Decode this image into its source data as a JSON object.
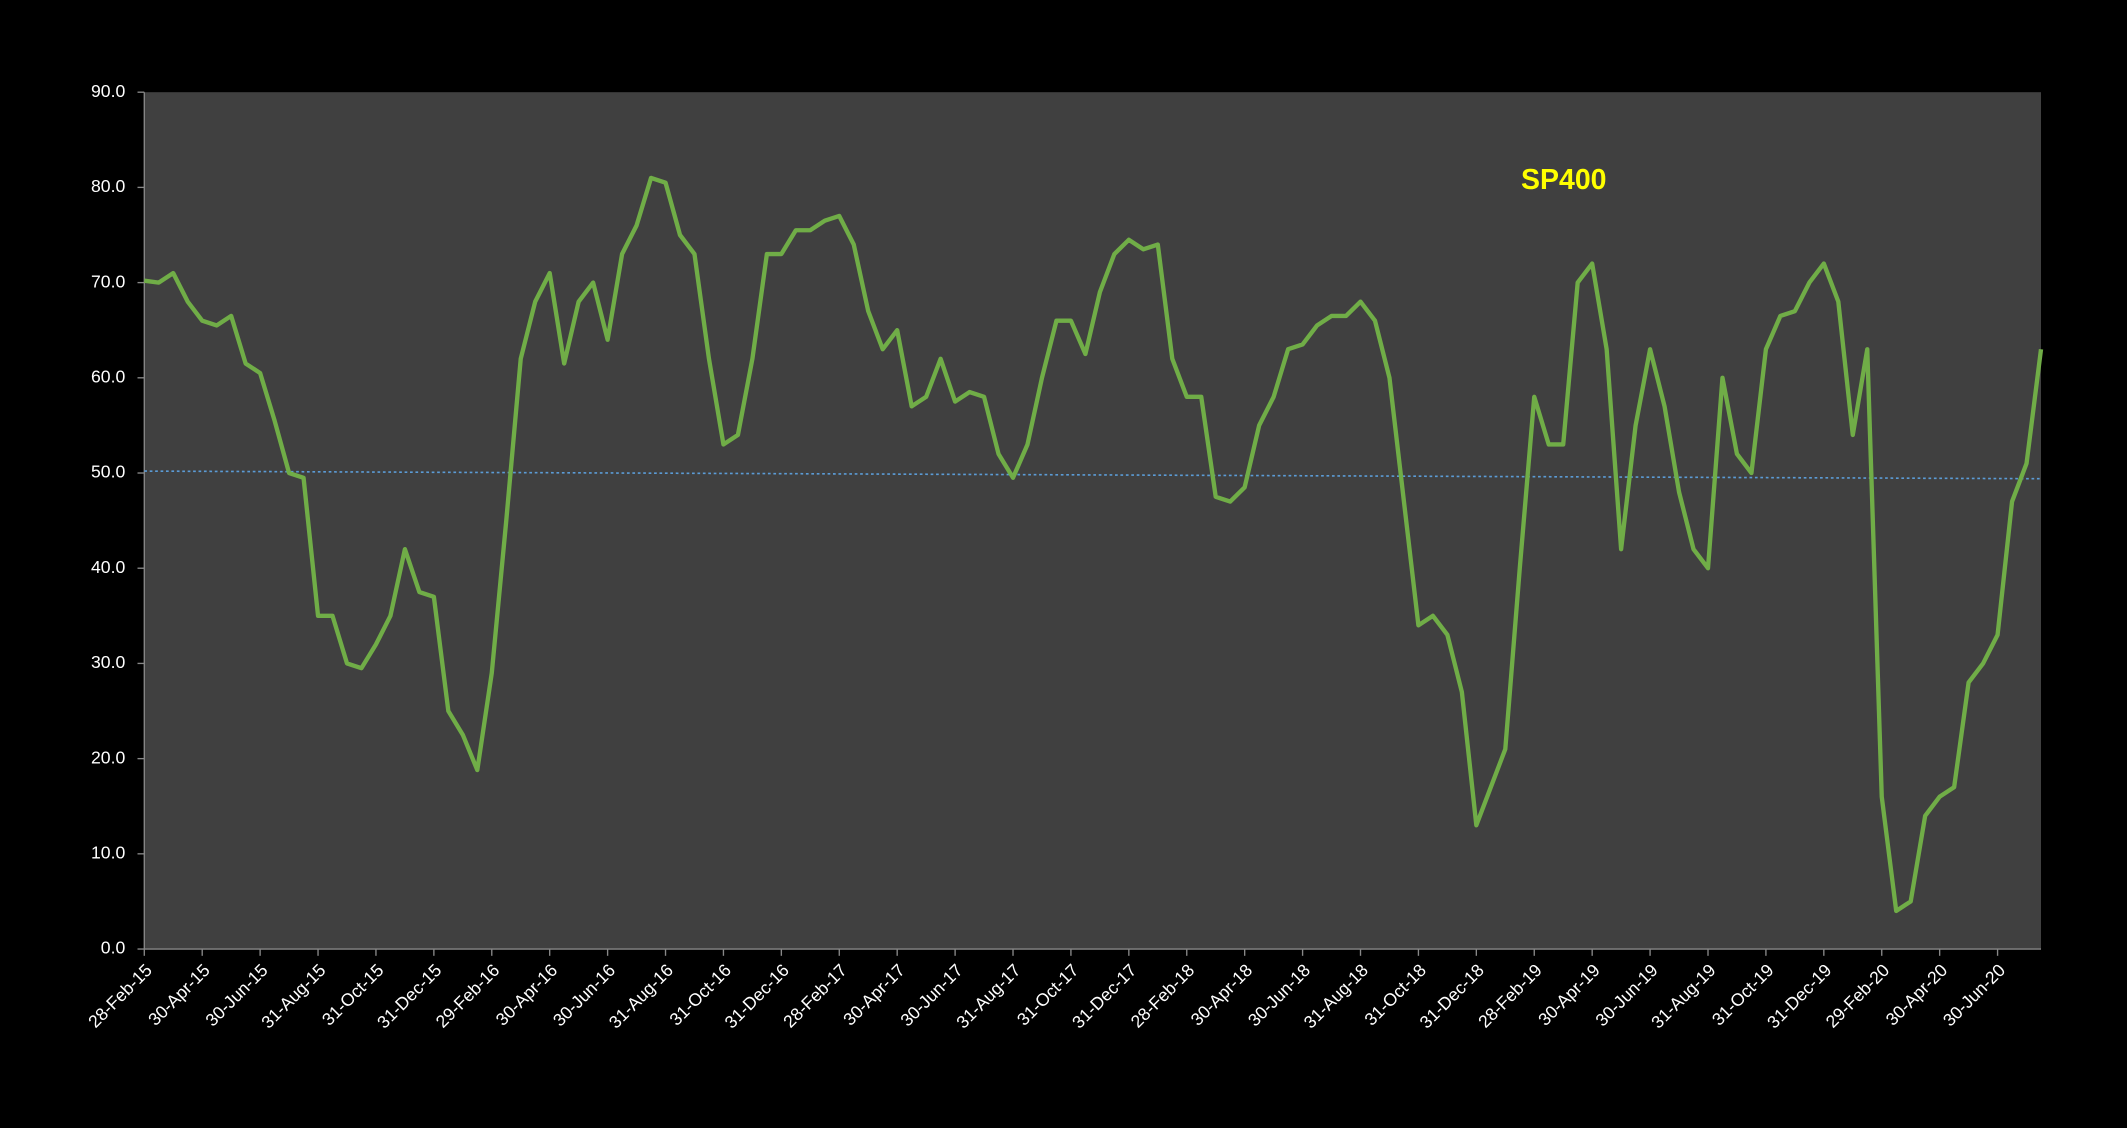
{
  "chart_data": {
    "type": "line",
    "title": "SP400",
    "title_color": "#ffff00",
    "categories": [
      "28-Feb-15",
      null,
      null,
      null,
      "30-Apr-15",
      null,
      null,
      null,
      "30-Jun-15",
      null,
      null,
      null,
      "31-Aug-15",
      null,
      null,
      null,
      "31-Oct-15",
      null,
      null,
      null,
      "31-Dec-15",
      null,
      null,
      null,
      "29-Feb-16",
      null,
      null,
      null,
      "30-Apr-16",
      null,
      null,
      null,
      "30-Jun-16",
      null,
      null,
      null,
      "31-Aug-16",
      null,
      null,
      null,
      "31-Oct-16",
      null,
      null,
      null,
      "31-Dec-16",
      null,
      null,
      null,
      "28-Feb-17",
      null,
      null,
      null,
      "30-Apr-17",
      null,
      null,
      null,
      "30-Jun-17",
      null,
      null,
      null,
      "31-Aug-17",
      null,
      null,
      null,
      "31-Oct-17",
      null,
      null,
      null,
      "31-Dec-17",
      null,
      null,
      null,
      "28-Feb-18",
      null,
      null,
      null,
      "30-Apr-18",
      null,
      null,
      null,
      "30-Jun-18",
      null,
      null,
      null,
      "31-Aug-18",
      null,
      null,
      null,
      "31-Oct-18",
      null,
      null,
      null,
      "31-Dec-18",
      null,
      null,
      null,
      "28-Feb-19",
      null,
      null,
      null,
      "30-Apr-19",
      null,
      null,
      null,
      "30-Jun-19",
      null,
      null,
      null,
      "31-Aug-19",
      null,
      null,
      null,
      "31-Oct-19",
      null,
      null,
      null,
      "31-Dec-19",
      null,
      null,
      null,
      "29-Feb-20",
      null,
      null,
      null,
      "30-Apr-20",
      null,
      null,
      null,
      "30-Jun-20",
      null,
      null,
      null
    ],
    "series": [
      {
        "color": "#70ad47",
        "values": [
          70.2,
          70.0,
          71.0,
          68.0,
          66.0,
          65.5,
          66.5,
          61.5,
          60.5,
          55.5,
          50.0,
          49.5,
          35.0,
          35.0,
          30.0,
          29.5,
          32.0,
          35.0,
          42.0,
          37.5,
          37.0,
          25.0,
          22.5,
          18.8,
          29.0,
          45.0,
          62.0,
          68.0,
          71.0,
          61.5,
          68.0,
          70.0,
          64.0,
          73.0,
          76.0,
          81.0,
          80.5,
          75.0,
          73.0,
          62.0,
          53.0,
          54.0,
          62.0,
          73.0,
          73.0,
          75.5,
          75.5,
          76.5,
          77.0,
          74.0,
          67.0,
          63.0,
          65.0,
          57.0,
          58.0,
          62.0,
          57.5,
          58.5,
          58.0,
          52.0,
          49.5,
          53.0,
          60.0,
          66.0,
          66.0,
          62.5,
          69.0,
          73.0,
          74.5,
          73.5,
          74.0,
          62.0,
          58.0,
          58.0,
          47.5,
          47.0,
          48.5,
          55.0,
          58.0,
          63.0,
          63.5,
          65.5,
          66.5,
          66.5,
          68.0,
          66.0,
          60.0,
          47.0,
          34.0,
          35.0,
          33.0,
          27.0,
          13.0,
          17.0,
          21.0,
          40.0,
          58.0,
          53.0,
          53.0,
          70.0,
          72.0,
          63.0,
          42.0,
          55.0,
          63.0,
          57.0,
          48.0,
          42.0,
          40.0,
          60.0,
          52.0,
          50.0,
          63.0,
          66.5,
          67.0,
          70.0,
          72.0,
          68.0,
          54.0,
          63.0,
          16.0,
          4.0,
          5.0,
          14.0,
          16.0,
          17.0,
          28.0,
          30.0,
          33.0,
          47.0,
          51.0,
          63.0
        ]
      }
    ],
    "trend_line": {
      "values": [
        50.2,
        49.4
      ],
      "color": "#5b9bd5"
    },
    "ylim": [
      0,
      90
    ],
    "yticks": [
      {
        "value": 0,
        "label": "0.0"
      },
      {
        "value": 10,
        "label": "10.0"
      },
      {
        "value": 20,
        "label": "20.0"
      },
      {
        "value": 30,
        "label": "30.0"
      },
      {
        "value": 40,
        "label": "40.0"
      },
      {
        "value": 50,
        "label": "50.0"
      },
      {
        "value": 60,
        "label": "60.0"
      },
      {
        "value": 70,
        "label": "70.0"
      },
      {
        "value": 80,
        "label": "80.0"
      },
      {
        "value": 90,
        "label": "90.0"
      }
    ],
    "grid": false
  }
}
